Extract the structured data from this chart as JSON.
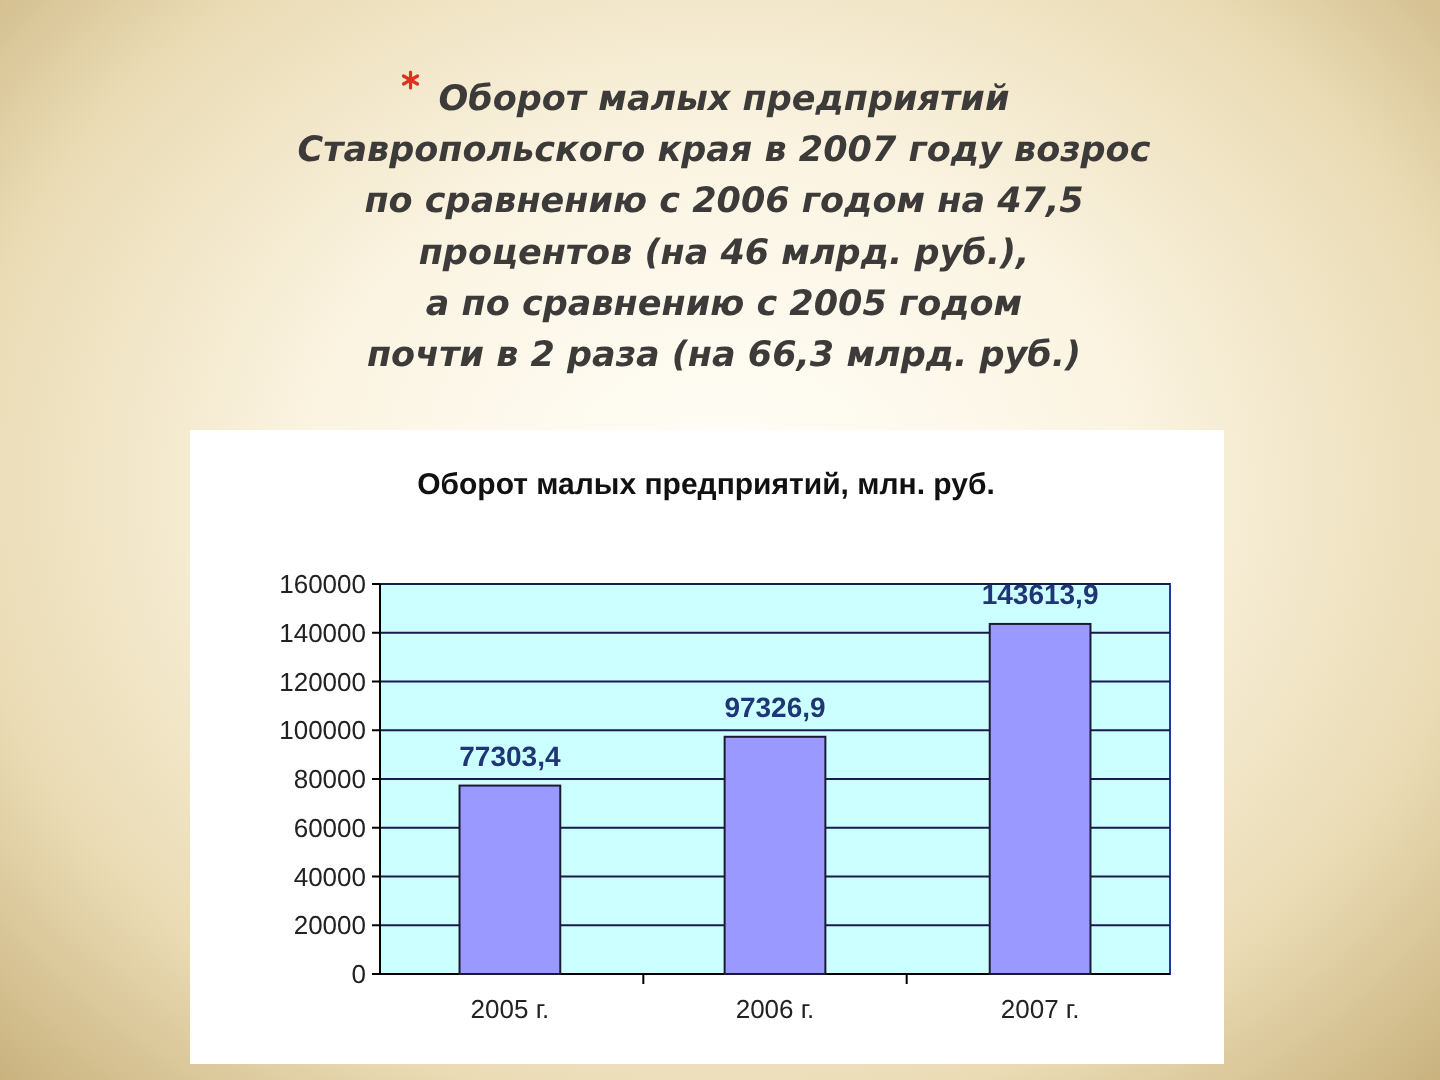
{
  "chart_data": {
    "type": "bar",
    "title": "Оборот малых предприятий, млн. руб.",
    "annotations": [
      "Оборот малых предприятий\nСтавропольского края в 2007 году возрос\nпо сравнению с 2006 годом на 47,5\nпроцентов (на 46 млрд. руб.),\nа по сравнению с 2005 годом\nпочти в 2 раза (на 66,3 млрд. руб.)"
    ],
    "categories": [
      "2005 г.",
      "2006 г.",
      "2007 г."
    ],
    "values": [
      77303.4,
      97326.9,
      143613.9
    ],
    "value_labels": [
      "77303,4",
      "97326,9",
      "143613,9"
    ],
    "color": "#9999ff",
    "ylim": [
      0,
      160000
    ],
    "yticks": [
      0,
      20000,
      40000,
      60000,
      80000,
      100000,
      120000,
      140000,
      160000
    ],
    "grid": "y"
  }
}
